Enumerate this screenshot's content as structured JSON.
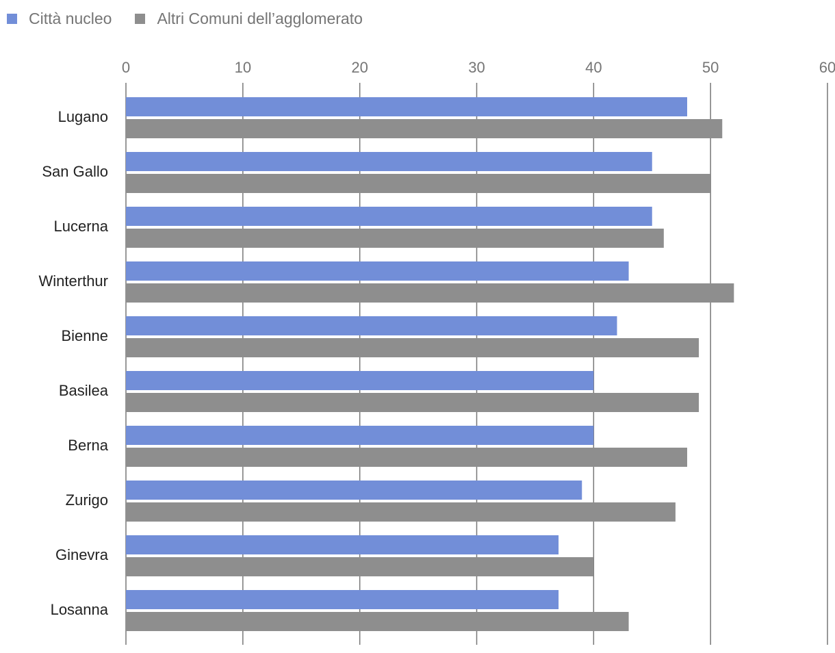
{
  "chart_data": {
    "type": "bar",
    "orientation": "horizontal",
    "categories": [
      "Lugano",
      "San Gallo",
      "Lucerna",
      "Winterthur",
      "Bienne",
      "Basilea",
      "Berna",
      "Zurigo",
      "Ginevra",
      "Losanna"
    ],
    "series": [
      {
        "name": "Città nucleo",
        "color": "#728ed8",
        "values": [
          48,
          45,
          45,
          43,
          42,
          40,
          40,
          39,
          37,
          37
        ]
      },
      {
        "name": "Altri Comuni dell’agglomerato",
        "color": "#8e8e8e",
        "values": [
          51,
          50,
          46,
          52,
          49,
          49,
          48,
          47,
          40,
          43
        ]
      }
    ],
    "xlim": [
      0,
      60
    ],
    "xticks": [
      0,
      10,
      20,
      30,
      40,
      50,
      60
    ],
    "grid": true,
    "legend_position": "top-left"
  }
}
